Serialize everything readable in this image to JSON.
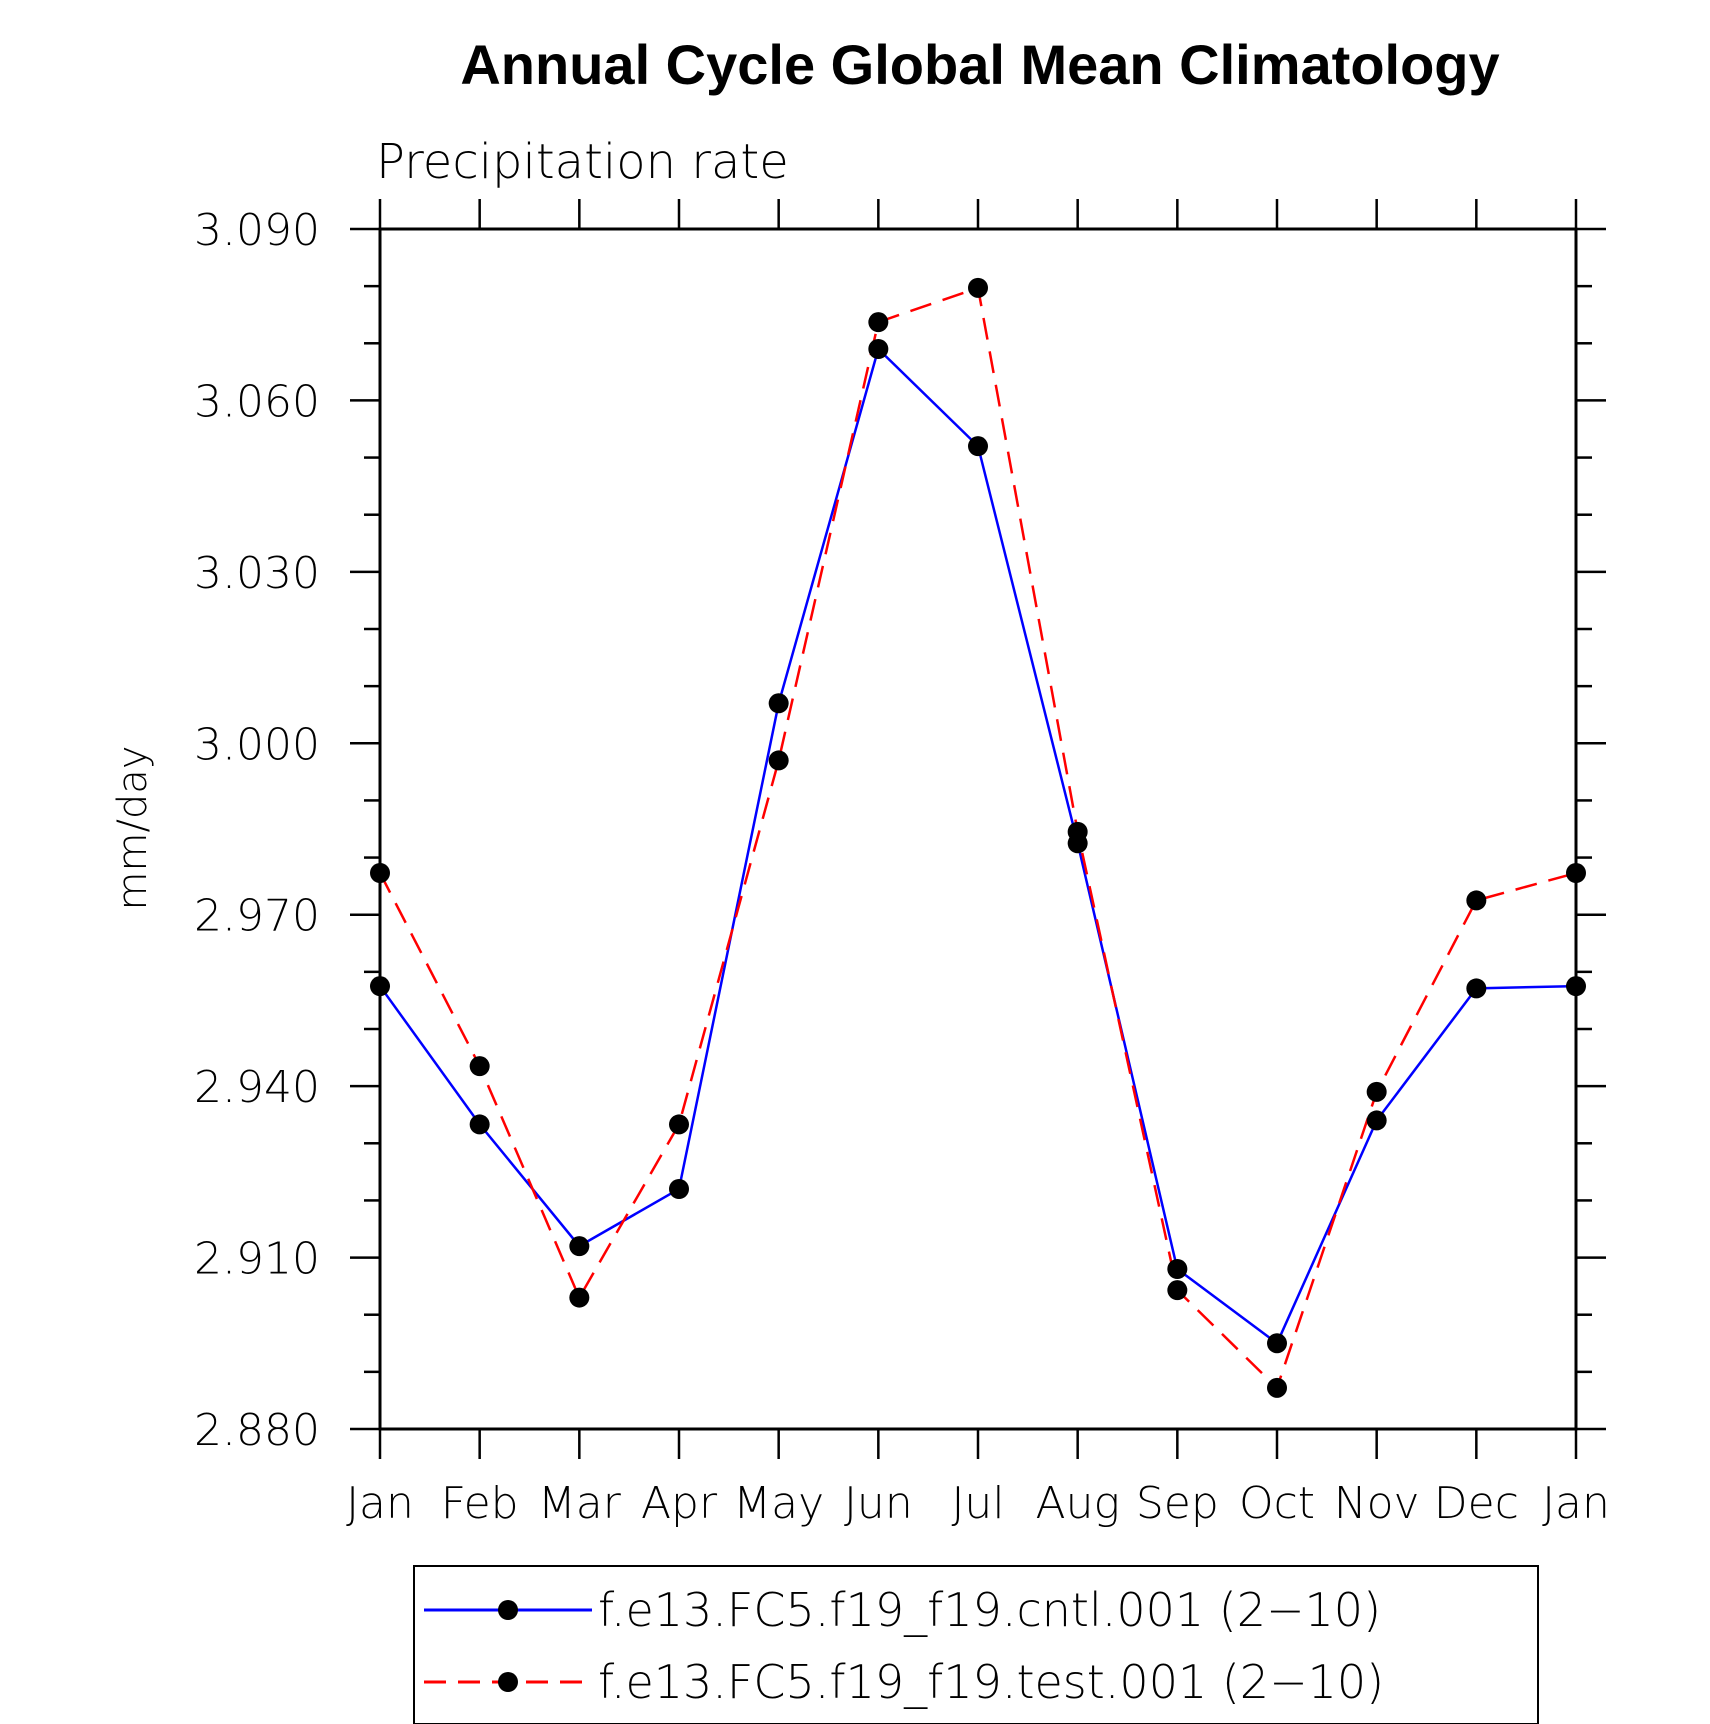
{
  "chart_data": {
    "type": "line",
    "title": "Annual Cycle Global Mean Climatology",
    "subtitle": "Precipitation rate",
    "xlabel": "",
    "ylabel": "mm/day",
    "categories": [
      "Jan",
      "Feb",
      "Mar",
      "Apr",
      "May",
      "Jun",
      "Jul",
      "Aug",
      "Sep",
      "Oct",
      "Nov",
      "Dec",
      "Jan"
    ],
    "ylim": [
      2.88,
      3.09
    ],
    "yticks": [
      "2.880",
      "2.910",
      "2.940",
      "2.970",
      "3.000",
      "3.030",
      "3.060",
      "3.090"
    ],
    "ytick_values": [
      2.88,
      2.91,
      2.94,
      2.97,
      3.0,
      3.03,
      3.06,
      3.09
    ],
    "grid": false,
    "legend_position": "bottom",
    "series": [
      {
        "name": "f.e13.FC5.f19_f19.cntl.001 (2−10)",
        "color": "#0000ff",
        "dash": "solid",
        "marker": "filled-circle",
        "values": [
          2.9575,
          2.9333,
          2.912,
          2.922,
          3.007,
          3.069,
          3.052,
          2.9825,
          2.908,
          2.895,
          2.934,
          2.9571,
          2.9575
        ]
      },
      {
        "name": "f.e13.FC5.f19_f19.test.001 (2−10)",
        "color": "#ff0000",
        "dash": "dashed",
        "marker": "filled-circle",
        "values": [
          2.9773,
          2.9435,
          2.903,
          2.9333,
          2.997,
          3.0737,
          3.0797,
          2.9845,
          2.9043,
          2.8872,
          2.939,
          2.9725,
          2.9773
        ]
      }
    ]
  }
}
